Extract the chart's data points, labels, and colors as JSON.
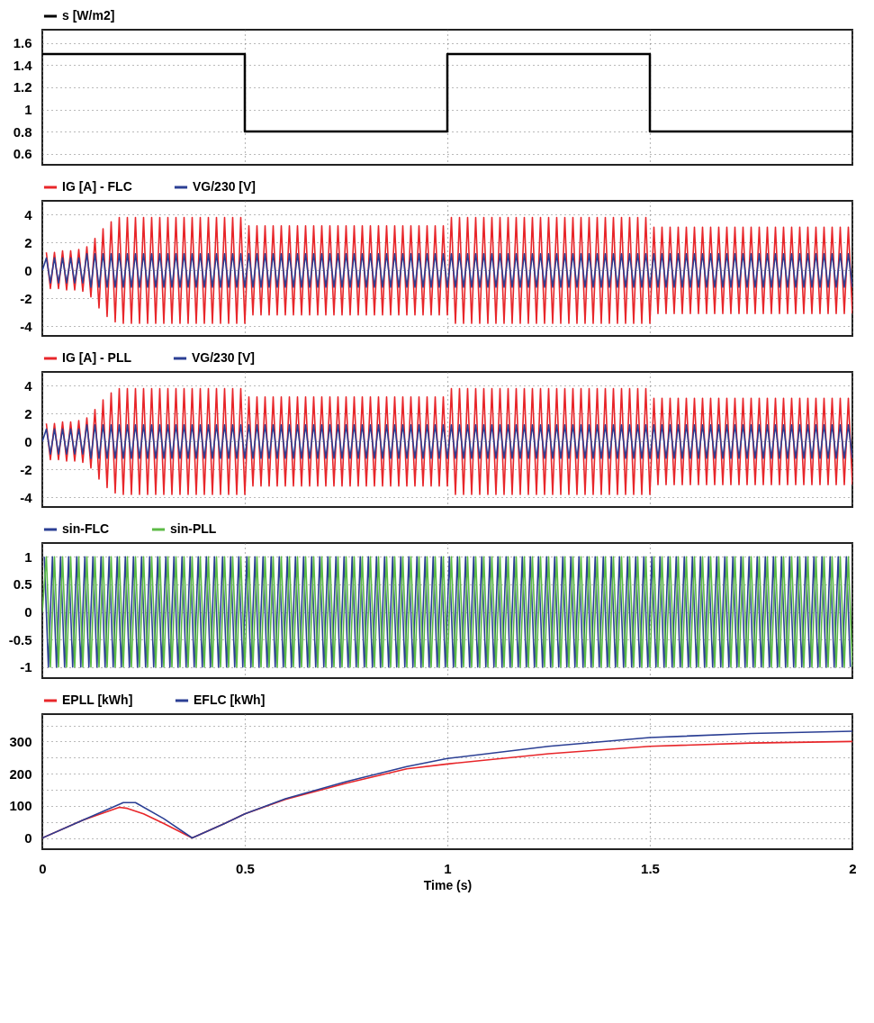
{
  "chart_data": [
    {
      "type": "step",
      "x": [
        0,
        0.5,
        1,
        1.5,
        2
      ],
      "xlim": [
        0,
        2
      ],
      "xticks": [
        0,
        0.5,
        1,
        1.5,
        2
      ],
      "ylim": [
        0.5,
        1.72
      ],
      "yticks": [
        0.6,
        0.8,
        1,
        1.2,
        1.4,
        1.6
      ],
      "grid": true,
      "legend": "top left",
      "tick_labels": "y",
      "series": [
        {
          "name": "s [W/m2]",
          "color": "#000000",
          "values": [
            1.5,
            0.8,
            1.5,
            0.8,
            0.8
          ]
        }
      ]
    },
    {
      "type": "line",
      "xlim": [
        0,
        2
      ],
      "xticks": [
        0,
        0.5,
        1,
        1.5,
        2
      ],
      "ylim": [
        -4.7,
        5
      ],
      "yticks": [
        -4,
        -2,
        0,
        2,
        4
      ],
      "grid": true,
      "legend": "top left",
      "tick_labels": "y",
      "x": [
        0,
        0.01,
        0.02,
        0.03,
        0.04,
        0.05,
        0.06,
        0.07,
        0.08,
        0.09,
        0.1,
        0.11,
        0.12,
        0.13,
        0.14,
        0.15,
        0.16,
        0.17,
        0.18,
        0.19,
        0.2,
        0.21,
        0.22,
        0.23,
        0.24,
        0.25,
        0.26,
        0.27,
        0.28,
        0.29,
        0.3,
        0.31,
        0.32,
        0.33,
        0.34,
        0.35,
        0.36,
        0.37,
        0.38,
        0.39,
        0.4,
        0.41,
        0.42,
        0.43,
        0.44,
        0.45,
        0.46,
        0.47,
        0.48,
        0.49,
        0.5,
        0.51,
        0.52,
        0.53,
        0.54,
        0.55,
        0.56,
        0.57,
        0.58,
        0.59,
        0.6,
        0.61,
        0.62,
        0.63,
        0.64,
        0.65,
        0.66,
        0.67,
        0.68,
        0.69,
        0.7,
        0.71,
        0.72,
        0.73,
        0.74,
        0.75,
        0.76,
        0.77,
        0.78,
        0.79,
        0.8,
        0.81,
        0.82,
        0.83,
        0.84,
        0.85,
        0.86,
        0.87,
        0.88,
        0.89,
        0.9,
        0.91,
        0.92,
        0.93,
        0.94,
        0.95,
        0.96,
        0.97,
        0.98,
        0.99,
        1,
        1.01,
        1.02,
        1.03,
        1.04,
        1.05,
        1.06,
        1.07,
        1.08,
        1.09,
        1.1,
        1.11,
        1.12,
        1.13,
        1.14,
        1.15,
        1.16,
        1.17,
        1.18,
        1.19,
        1.2,
        1.21,
        1.22,
        1.23,
        1.24,
        1.25,
        1.26,
        1.27,
        1.28,
        1.29,
        1.3,
        1.31,
        1.32,
        1.33,
        1.34,
        1.35,
        1.36,
        1.37,
        1.38,
        1.39,
        1.4,
        1.41,
        1.42,
        1.43,
        1.44,
        1.45,
        1.46,
        1.47,
        1.48,
        1.49,
        1.5,
        1.51,
        1.52,
        1.53,
        1.54,
        1.55,
        1.56,
        1.57,
        1.58,
        1.59,
        1.6,
        1.61,
        1.62,
        1.63,
        1.64,
        1.65,
        1.66,
        1.67,
        1.68,
        1.69,
        1.7,
        1.71,
        1.72,
        1.73,
        1.74,
        1.75,
        1.76,
        1.77,
        1.78,
        1.79,
        1.8,
        1.81,
        1.82,
        1.83,
        1.84,
        1.85,
        1.86,
        1.87,
        1.88,
        1.89,
        1.9,
        1.91,
        1.92,
        1.93,
        1.94,
        1.95,
        1.96,
        1.97,
        1.98,
        1.99,
        2
      ],
      "series": [
        {
          "name": "IG [A] - FLC",
          "color": "#e8262a",
          "values": [
            null,
            1.3,
            -1.3,
            1.3,
            -1.3,
            1.4,
            -1.4,
            1.4,
            -1.4,
            1.5,
            -1.5,
            1.7,
            -1.9,
            2.3,
            -2.7,
            3,
            -3.3,
            3.5,
            -3.7,
            3.8,
            -3.8,
            3.8,
            -3.8,
            3.8,
            -3.8,
            3.8,
            -3.8,
            3.8,
            -3.8,
            3.8,
            -3.8,
            3.8,
            -3.8,
            3.8,
            -3.8,
            3.8,
            -3.8,
            3.8,
            -3.8,
            3.8,
            -3.8,
            3.8,
            -3.8,
            3.8,
            -3.8,
            3.8,
            -3.8,
            3.8,
            -3.8,
            3.8,
            -3.8,
            3.2,
            -3.2,
            3.2,
            -3.2,
            3.2,
            -3.2,
            3.2,
            -3.2,
            3.2,
            -3.2,
            3.2,
            -3.2,
            3.2,
            -3.2,
            3.2,
            -3.2,
            3.2,
            -3.2,
            3.2,
            -3.2,
            3.2,
            -3.2,
            3.2,
            -3.2,
            3.2,
            -3.2,
            3.2,
            -3.2,
            3.2,
            -3.2,
            3.2,
            -3.2,
            3.2,
            -3.2,
            3.2,
            -3.2,
            3.2,
            -3.2,
            3.2,
            -3.2,
            3.2,
            -3.2,
            3.2,
            -3.2,
            3.2,
            -3.2,
            3.2,
            -3.2,
            3.2,
            -3.2,
            3.8,
            -3.8,
            3.8,
            -3.8,
            3.8,
            -3.8,
            3.8,
            -3.8,
            3.8,
            -3.8,
            3.8,
            -3.8,
            3.8,
            -3.8,
            3.8,
            -3.8,
            3.8,
            -3.8,
            3.8,
            -3.8,
            3.8,
            -3.8,
            3.8,
            -3.8,
            3.8,
            -3.8,
            3.8,
            -3.8,
            3.8,
            -3.8,
            3.8,
            -3.8,
            3.8,
            -3.8,
            3.8,
            -3.8,
            3.8,
            -3.8,
            3.8,
            -3.8,
            3.8,
            -3.8,
            3.8,
            -3.8,
            3.8,
            -3.8,
            3.8,
            -3.8,
            3.8,
            -3.8,
            3.1,
            -3.1,
            3.1,
            -3.1,
            3.1,
            -3.1,
            3.1,
            -3.1,
            3.1,
            -3.1,
            3.1,
            -3.1,
            3.1,
            -3.1,
            3.1,
            -3.1,
            3.1,
            -3.1,
            3.1,
            -3.1,
            3.1,
            -3.1,
            3.1,
            -3.1,
            3.1,
            -3.1,
            3.1,
            -3.1,
            3.1,
            -3.1,
            3.1,
            -3.1,
            3.1,
            -3.1,
            3.1,
            -3.1,
            3.1,
            -3.1,
            3.1,
            -3.1,
            3.1,
            -3.1,
            3.1,
            -3.1,
            3.1,
            -3.1,
            3.1,
            -3.1,
            3.1,
            -3.1
          ]
        },
        {
          "name": "VG/230 [V]",
          "color": "#2b3f94",
          "values": [
            0,
            0.9,
            -0.9,
            0.9,
            -0.9,
            0.9,
            -0.9,
            0.9,
            -0.9,
            0.9,
            -0.9,
            1.2,
            -1.2,
            1.2,
            -1.2,
            1.2,
            -1.2,
            1.2,
            -1.2,
            1.2,
            -1.2,
            1.2,
            -1.2,
            1.2,
            -1.2,
            1.2,
            -1.2,
            1.2,
            -1.2,
            1.2,
            -1.2,
            1.2,
            -1.2,
            1.2,
            -1.2,
            1.2,
            -1.2,
            1.2,
            -1.2,
            1.2,
            -1.2,
            1.2,
            -1.2,
            1.2,
            -1.2,
            1.2,
            -1.2,
            1.2,
            -1.2,
            1.2,
            -1.2,
            1.2,
            -1.2,
            1.2,
            -1.2,
            1.2,
            -1.2,
            1.2,
            -1.2,
            1.2,
            -1.2,
            1.2,
            -1.2,
            1.2,
            -1.2,
            1.2,
            -1.2,
            1.2,
            -1.2,
            1.2,
            -1.2,
            1.2,
            -1.2,
            1.2,
            -1.2,
            1.2,
            -1.2,
            1.2,
            -1.2,
            1.2,
            -1.2,
            1.2,
            -1.2,
            1.2,
            -1.2,
            1.2,
            -1.2,
            1.2,
            -1.2,
            1.2,
            -1.2,
            1.2,
            -1.2,
            1.2,
            -1.2,
            1.2,
            -1.2,
            1.2,
            -1.2,
            1.2,
            -1.2,
            1.2,
            -1.2,
            1.2,
            -1.2,
            1.2,
            -1.2,
            1.2,
            -1.2,
            1.2,
            -1.2,
            1.2,
            -1.2,
            1.2,
            -1.2,
            1.2,
            -1.2,
            1.2,
            -1.2,
            1.2,
            -1.2,
            1.2,
            -1.2,
            1.2,
            -1.2,
            1.2,
            -1.2,
            1.2,
            -1.2,
            1.2,
            -1.2,
            1.2,
            -1.2,
            1.2,
            -1.2,
            1.2,
            -1.2,
            1.2,
            -1.2,
            1.2,
            -1.2,
            1.2,
            -1.2,
            1.2,
            -1.2,
            1.2,
            -1.2,
            1.2,
            -1.2,
            1.2,
            -1.2,
            1.2,
            -1.2,
            1.2,
            -1.2,
            1.2,
            -1.2,
            1.2,
            -1.2,
            1.2,
            -1.2,
            1.2,
            -1.2,
            1.2,
            -1.2,
            1.2,
            -1.2,
            1.2,
            -1.2,
            1.2,
            -1.2,
            1.2,
            -1.2,
            1.2,
            -1.2,
            1.2,
            -1.2,
            1.2,
            -1.2,
            1.2,
            -1.2,
            1.2,
            -1.2,
            1.2,
            -1.2,
            1.2,
            -1.2,
            1.2,
            -1.2,
            1.2,
            -1.2,
            1.2,
            -1.2,
            1.2,
            -1.2,
            1.2,
            -1.2,
            1.2,
            -1.2,
            1.2,
            -1.2
          ]
        }
      ]
    },
    {
      "type": "line",
      "xlim": [
        0,
        2
      ],
      "xticks": [
        0,
        0.5,
        1,
        1.5,
        2
      ],
      "ylim": [
        -4.7,
        5
      ],
      "yticks": [
        -4,
        -2,
        0,
        2,
        4
      ],
      "grid": true,
      "legend": "top left",
      "tick_labels": "y",
      "x": [
        0,
        0.01,
        0.02,
        0.03,
        0.04,
        0.05,
        0.06,
        0.07,
        0.08,
        0.09,
        0.1,
        0.11,
        0.12,
        0.13,
        0.14,
        0.15,
        0.16,
        0.17,
        0.18,
        0.19,
        0.2,
        0.21,
        0.22,
        0.23,
        0.24,
        0.25,
        0.26,
        0.27,
        0.28,
        0.29,
        0.3,
        0.31,
        0.32,
        0.33,
        0.34,
        0.35,
        0.36,
        0.37,
        0.38,
        0.39,
        0.4,
        0.41,
        0.42,
        0.43,
        0.44,
        0.45,
        0.46,
        0.47,
        0.48,
        0.49,
        0.5,
        0.51,
        0.52,
        0.53,
        0.54,
        0.55,
        0.56,
        0.57,
        0.58,
        0.59,
        0.6,
        0.61,
        0.62,
        0.63,
        0.64,
        0.65,
        0.66,
        0.67,
        0.68,
        0.69,
        0.7,
        0.71,
        0.72,
        0.73,
        0.74,
        0.75,
        0.76,
        0.77,
        0.78,
        0.79,
        0.8,
        0.81,
        0.82,
        0.83,
        0.84,
        0.85,
        0.86,
        0.87,
        0.88,
        0.89,
        0.9,
        0.91,
        0.92,
        0.93,
        0.94,
        0.95,
        0.96,
        0.97,
        0.98,
        0.99,
        1,
        1.01,
        1.02,
        1.03,
        1.04,
        1.05,
        1.06,
        1.07,
        1.08,
        1.09,
        1.1,
        1.11,
        1.12,
        1.13,
        1.14,
        1.15,
        1.16,
        1.17,
        1.18,
        1.19,
        1.2,
        1.21,
        1.22,
        1.23,
        1.24,
        1.25,
        1.26,
        1.27,
        1.28,
        1.29,
        1.3,
        1.31,
        1.32,
        1.33,
        1.34,
        1.35,
        1.36,
        1.37,
        1.38,
        1.39,
        1.4,
        1.41,
        1.42,
        1.43,
        1.44,
        1.45,
        1.46,
        1.47,
        1.48,
        1.49,
        1.5,
        1.51,
        1.52,
        1.53,
        1.54,
        1.55,
        1.56,
        1.57,
        1.58,
        1.59,
        1.6,
        1.61,
        1.62,
        1.63,
        1.64,
        1.65,
        1.66,
        1.67,
        1.68,
        1.69,
        1.7,
        1.71,
        1.72,
        1.73,
        1.74,
        1.75,
        1.76,
        1.77,
        1.78,
        1.79,
        1.8,
        1.81,
        1.82,
        1.83,
        1.84,
        1.85,
        1.86,
        1.87,
        1.88,
        1.89,
        1.9,
        1.91,
        1.92,
        1.93,
        1.94,
        1.95,
        1.96,
        1.97,
        1.98,
        1.99,
        2
      ],
      "series": [
        {
          "name": "IG [A] - PLL",
          "color": "#e8262a",
          "values": [
            null,
            1.3,
            -1.3,
            1.3,
            -1.3,
            1.4,
            -1.4,
            1.4,
            -1.4,
            1.5,
            -1.5,
            1.7,
            -1.9,
            2.3,
            -2.7,
            3,
            -3.3,
            3.5,
            -3.7,
            3.8,
            -3.8,
            3.8,
            -3.8,
            3.8,
            -3.8,
            3.8,
            -3.8,
            3.8,
            -3.8,
            3.8,
            -3.8,
            3.8,
            -3.8,
            3.8,
            -3.8,
            3.8,
            -3.8,
            3.8,
            -3.8,
            3.8,
            -3.8,
            3.8,
            -3.8,
            3.8,
            -3.8,
            3.8,
            -3.8,
            3.8,
            -3.8,
            3.8,
            -3.8,
            3.2,
            -3.2,
            3.2,
            -3.2,
            3.2,
            -3.2,
            3.2,
            -3.2,
            3.2,
            -3.2,
            3.2,
            -3.2,
            3.2,
            -3.2,
            3.2,
            -3.2,
            3.2,
            -3.2,
            3.2,
            -3.2,
            3.2,
            -3.2,
            3.2,
            -3.2,
            3.2,
            -3.2,
            3.2,
            -3.2,
            3.2,
            -3.2,
            3.2,
            -3.2,
            3.2,
            -3.2,
            3.2,
            -3.2,
            3.2,
            -3.2,
            3.2,
            -3.2,
            3.2,
            -3.2,
            3.2,
            -3.2,
            3.2,
            -3.2,
            3.2,
            -3.2,
            3.2,
            -3.2,
            3.8,
            -3.8,
            3.8,
            -3.8,
            3.8,
            -3.8,
            3.8,
            -3.8,
            3.8,
            -3.8,
            3.8,
            -3.8,
            3.8,
            -3.8,
            3.8,
            -3.8,
            3.8,
            -3.8,
            3.8,
            -3.8,
            3.8,
            -3.8,
            3.8,
            -3.8,
            3.8,
            -3.8,
            3.8,
            -3.8,
            3.8,
            -3.8,
            3.8,
            -3.8,
            3.8,
            -3.8,
            3.8,
            -3.8,
            3.8,
            -3.8,
            3.8,
            -3.8,
            3.8,
            -3.8,
            3.8,
            -3.8,
            3.8,
            -3.8,
            3.8,
            -3.8,
            3.8,
            -3.8,
            3.1,
            -3.1,
            3.1,
            -3.1,
            3.1,
            -3.1,
            3.1,
            -3.1,
            3.1,
            -3.1,
            3.1,
            -3.1,
            3.1,
            -3.1,
            3.1,
            -3.1,
            3.1,
            -3.1,
            3.1,
            -3.1,
            3.1,
            -3.1,
            3.1,
            -3.1,
            3.1,
            -3.1,
            3.1,
            -3.1,
            3.1,
            -3.1,
            3.1,
            -3.1,
            3.1,
            -3.1,
            3.1,
            -3.1,
            3.1,
            -3.1,
            3.1,
            -3.1,
            3.1,
            -3.1,
            3.1,
            -3.1,
            3.1,
            -3.1,
            3.1,
            -3.1,
            3.1,
            -3.1
          ]
        },
        {
          "name": "VG/230 [V]",
          "color": "#2b3f94",
          "values": [
            0,
            0.9,
            -0.9,
            0.9,
            -0.9,
            0.9,
            -0.9,
            0.9,
            -0.9,
            0.9,
            -0.9,
            1.2,
            -1.2,
            1.2,
            -1.2,
            1.2,
            -1.2,
            1.2,
            -1.2,
            1.2,
            -1.2,
            1.2,
            -1.2,
            1.2,
            -1.2,
            1.2,
            -1.2,
            1.2,
            -1.2,
            1.2,
            -1.2,
            1.2,
            -1.2,
            1.2,
            -1.2,
            1.2,
            -1.2,
            1.2,
            -1.2,
            1.2,
            -1.2,
            1.2,
            -1.2,
            1.2,
            -1.2,
            1.2,
            -1.2,
            1.2,
            -1.2,
            1.2,
            -1.2,
            1.2,
            -1.2,
            1.2,
            -1.2,
            1.2,
            -1.2,
            1.2,
            -1.2,
            1.2,
            -1.2,
            1.2,
            -1.2,
            1.2,
            -1.2,
            1.2,
            -1.2,
            1.2,
            -1.2,
            1.2,
            -1.2,
            1.2,
            -1.2,
            1.2,
            -1.2,
            1.2,
            -1.2,
            1.2,
            -1.2,
            1.2,
            -1.2,
            1.2,
            -1.2,
            1.2,
            -1.2,
            1.2,
            -1.2,
            1.2,
            -1.2,
            1.2,
            -1.2,
            1.2,
            -1.2,
            1.2,
            -1.2,
            1.2,
            -1.2,
            1.2,
            -1.2,
            1.2,
            -1.2,
            1.2,
            -1.2,
            1.2,
            -1.2,
            1.2,
            -1.2,
            1.2,
            -1.2,
            1.2,
            -1.2,
            1.2,
            -1.2,
            1.2,
            -1.2,
            1.2,
            -1.2,
            1.2,
            -1.2,
            1.2,
            -1.2,
            1.2,
            -1.2,
            1.2,
            -1.2,
            1.2,
            -1.2,
            1.2,
            -1.2,
            1.2,
            -1.2,
            1.2,
            -1.2,
            1.2,
            -1.2,
            1.2,
            -1.2,
            1.2,
            -1.2,
            1.2,
            -1.2,
            1.2,
            -1.2,
            1.2,
            -1.2,
            1.2,
            -1.2,
            1.2,
            -1.2,
            1.2,
            -1.2,
            1.2,
            -1.2,
            1.2,
            -1.2,
            1.2,
            -1.2,
            1.2,
            -1.2,
            1.2,
            -1.2,
            1.2,
            -1.2,
            1.2,
            -1.2,
            1.2,
            -1.2,
            1.2,
            -1.2,
            1.2,
            -1.2,
            1.2,
            -1.2,
            1.2,
            -1.2,
            1.2,
            -1.2,
            1.2,
            -1.2,
            1.2,
            -1.2,
            1.2,
            -1.2,
            1.2,
            -1.2,
            1.2,
            -1.2,
            1.2,
            -1.2,
            1.2,
            -1.2,
            1.2,
            -1.2,
            1.2,
            -1.2,
            1.2,
            -1.2,
            1.2,
            -1.2,
            1.2,
            -1.2
          ]
        }
      ]
    },
    {
      "type": "line",
      "xlim": [
        0,
        2
      ],
      "xticks": [
        0,
        0.5,
        1,
        1.5,
        2
      ],
      "ylim": [
        -1.2,
        1.25
      ],
      "yticks": [
        -1,
        -0.5,
        0,
        0.5,
        1
      ],
      "grid": true,
      "legend": "top left",
      "tick_labels": "y",
      "x": [
        0,
        0.01,
        0.02,
        0.03,
        0.04,
        0.05,
        0.06,
        0.07,
        0.08,
        0.09,
        0.1,
        0.11,
        0.12,
        0.13,
        0.14,
        0.15,
        0.16,
        0.17,
        0.18,
        0.19,
        0.2,
        0.21,
        0.22,
        0.23,
        0.24,
        0.25,
        0.26,
        0.27,
        0.28,
        0.29,
        0.3,
        0.31,
        0.32,
        0.33,
        0.34,
        0.35,
        0.36,
        0.37,
        0.38,
        0.39,
        0.4,
        0.41,
        0.42,
        0.43,
        0.44,
        0.45,
        0.46,
        0.47,
        0.48,
        0.49,
        0.5,
        0.51,
        0.52,
        0.53,
        0.54,
        0.55,
        0.56,
        0.57,
        0.58,
        0.59,
        0.6,
        0.61,
        0.62,
        0.63,
        0.64,
        0.65,
        0.66,
        0.67,
        0.68,
        0.69,
        0.7,
        0.71,
        0.72,
        0.73,
        0.74,
        0.75,
        0.76,
        0.77,
        0.78,
        0.79,
        0.8,
        0.81,
        0.82,
        0.83,
        0.84,
        0.85,
        0.86,
        0.87,
        0.88,
        0.89,
        0.9,
        0.91,
        0.92,
        0.93,
        0.94,
        0.95,
        0.96,
        0.97,
        0.98,
        0.99,
        1,
        1.01,
        1.02,
        1.03,
        1.04,
        1.05,
        1.06,
        1.07,
        1.08,
        1.09,
        1.1,
        1.11,
        1.12,
        1.13,
        1.14,
        1.15,
        1.16,
        1.17,
        1.18,
        1.19,
        1.2,
        1.21,
        1.22,
        1.23,
        1.24,
        1.25,
        1.26,
        1.27,
        1.28,
        1.29,
        1.3,
        1.31,
        1.32,
        1.33,
        1.34,
        1.35,
        1.36,
        1.37,
        1.38,
        1.39,
        1.4,
        1.41,
        1.42,
        1.43,
        1.44,
        1.45,
        1.46,
        1.47,
        1.48,
        1.49,
        1.5,
        1.51,
        1.52,
        1.53,
        1.54,
        1.55,
        1.56,
        1.57,
        1.58,
        1.59,
        1.6,
        1.61,
        1.62,
        1.63,
        1.64,
        1.65,
        1.66,
        1.67,
        1.68,
        1.69,
        1.7,
        1.71,
        1.72,
        1.73,
        1.74,
        1.75,
        1.76,
        1.77,
        1.78,
        1.79,
        1.8,
        1.81,
        1.82,
        1.83,
        1.84,
        1.85,
        1.86,
        1.87,
        1.88,
        1.89,
        1.9,
        1.91,
        1.92,
        1.93,
        1.94,
        1.95,
        1.96,
        1.97,
        1.98,
        1.99,
        2
      ],
      "series": [
        {
          "name": "sin-FLC",
          "color": "#2b3f94",
          "x": [
            0.005,
            0.015,
            0.025,
            0.035,
            0.045,
            0.055,
            0.065,
            0.075,
            0.085,
            0.095,
            0.105,
            0.115,
            0.125,
            0.135,
            0.145,
            0.155,
            0.165,
            0.175,
            0.185,
            0.195,
            0.205,
            0.215,
            0.225,
            0.235,
            0.245,
            0.255,
            0.265,
            0.275,
            0.285,
            0.295,
            0.305,
            0.315,
            0.325,
            0.335,
            0.345,
            0.355,
            0.365,
            0.375,
            0.385,
            0.395,
            0.405,
            0.415,
            0.425,
            0.435,
            0.445,
            0.455,
            0.465,
            0.475,
            0.485,
            0.495,
            0.505,
            0.515,
            0.525,
            0.535,
            0.545,
            0.555,
            0.565,
            0.575,
            0.585,
            0.595,
            0.605,
            0.615,
            0.625,
            0.635,
            0.645,
            0.655,
            0.665,
            0.675,
            0.685,
            0.695,
            0.705,
            0.715,
            0.725,
            0.735,
            0.745,
            0.755,
            0.765,
            0.775,
            0.785,
            0.795,
            0.805,
            0.815,
            0.825,
            0.835,
            0.845,
            0.855,
            0.865,
            0.875,
            0.885,
            0.895,
            0.905,
            0.915,
            0.925,
            0.935,
            0.945,
            0.955,
            0.965,
            0.975,
            0.985,
            0.995,
            1.005,
            1.015,
            1.025,
            1.035,
            1.045,
            1.055,
            1.065,
            1.075,
            1.085,
            1.095,
            1.105,
            1.115,
            1.125,
            1.135,
            1.145,
            1.155,
            1.165,
            1.175,
            1.185,
            1.195,
            1.205,
            1.215,
            1.225,
            1.235,
            1.245,
            1.255,
            1.265,
            1.275,
            1.285,
            1.295,
            1.305,
            1.315,
            1.325,
            1.335,
            1.345,
            1.355,
            1.365,
            1.375,
            1.385,
            1.395,
            1.405,
            1.415,
            1.425,
            1.435,
            1.445,
            1.455,
            1.465,
            1.475,
            1.485,
            1.495,
            1.505,
            1.515,
            1.525,
            1.535,
            1.545,
            1.555,
            1.565,
            1.575,
            1.585,
            1.595,
            1.605,
            1.615,
            1.625,
            1.635,
            1.645,
            1.655,
            1.665,
            1.675,
            1.685,
            1.695,
            1.705,
            1.715,
            1.725,
            1.735,
            1.745,
            1.755,
            1.765,
            1.775,
            1.785,
            1.795,
            1.805,
            1.815,
            1.825,
            1.835,
            1.845,
            1.855,
            1.865,
            1.875,
            1.885,
            1.895,
            1.905,
            1.915,
            1.925,
            1.935,
            1.945,
            1.955,
            1.965,
            1.975,
            1.985,
            1.995
          ],
          "values": [
            1,
            -1,
            1,
            -1,
            1,
            -1,
            1,
            -1,
            1,
            -1,
            1,
            -1,
            1,
            -1,
            1,
            -1,
            1,
            -1,
            1,
            -1,
            1,
            -1,
            1,
            -1,
            1,
            -1,
            1,
            -1,
            1,
            -1,
            1,
            -1,
            1,
            -1,
            1,
            -1,
            1,
            -1,
            1,
            -1,
            1,
            -1,
            1,
            -1,
            1,
            -1,
            1,
            -1,
            1,
            -1,
            1,
            -1,
            1,
            -1,
            1,
            -1,
            1,
            -1,
            1,
            -1,
            1,
            -1,
            1,
            -1,
            1,
            -1,
            1,
            -1,
            1,
            -1,
            1,
            -1,
            1,
            -1,
            1,
            -1,
            1,
            -1,
            1,
            -1,
            1,
            -1,
            1,
            -1,
            1,
            -1,
            1,
            -1,
            1,
            -1,
            1,
            -1,
            1,
            -1,
            1,
            -1,
            1,
            -1,
            1,
            -1,
            1,
            -1,
            1,
            -1,
            1,
            -1,
            1,
            -1,
            1,
            -1,
            1,
            -1,
            1,
            -1,
            1,
            -1,
            1,
            -1,
            1,
            -1,
            1,
            -1,
            1,
            -1,
            1,
            -1,
            1,
            -1,
            1,
            -1,
            1,
            -1,
            1,
            -1,
            1,
            -1,
            1,
            -1,
            1,
            -1,
            1,
            -1,
            1,
            -1,
            1,
            -1,
            1,
            -1,
            1,
            -1,
            1,
            -1,
            1,
            -1,
            1,
            -1,
            1,
            -1,
            1,
            -1,
            1,
            -1,
            1,
            -1,
            1,
            -1,
            1,
            -1,
            1,
            -1,
            1,
            -1,
            1,
            -1,
            1,
            -1,
            1,
            -1,
            1,
            -1,
            1,
            -1,
            1,
            -1,
            1,
            -1,
            1,
            -1,
            1,
            -1,
            1,
            -1,
            1,
            -1,
            1,
            -1,
            1,
            -1,
            1,
            -1
          ]
        },
        {
          "name": "sin-PLL",
          "color": "#5dbb46",
          "values": [
            0,
            1,
            -1,
            1,
            -1,
            1,
            -1,
            1,
            -1,
            1,
            -1,
            1,
            -1,
            1,
            -1,
            1,
            -1,
            1,
            -1,
            1,
            -1,
            1,
            -1,
            1,
            -1,
            1,
            -1,
            1,
            -1,
            1,
            -1,
            1,
            -1,
            1,
            -1,
            1,
            -1,
            1,
            -1,
            1,
            -1,
            1,
            -1,
            1,
            -1,
            1,
            -1,
            1,
            -1,
            1,
            -1,
            1,
            -1,
            1,
            -1,
            1,
            -1,
            1,
            -1,
            1,
            -1,
            1,
            -1,
            1,
            -1,
            1,
            -1,
            1,
            -1,
            1,
            -1,
            1,
            -1,
            1,
            -1,
            1,
            -1,
            1,
            -1,
            1,
            -1,
            1,
            -1,
            1,
            -1,
            1,
            -1,
            1,
            -1,
            1,
            -1,
            1,
            -1,
            1,
            -1,
            1,
            -1,
            1,
            -1,
            1,
            -1,
            1,
            -1,
            1,
            -1,
            1,
            -1,
            1,
            -1,
            1,
            -1,
            1,
            -1,
            1,
            -1,
            1,
            -1,
            1,
            -1,
            1,
            -1,
            1,
            -1,
            1,
            -1,
            1,
            -1,
            1,
            -1,
            1,
            -1,
            1,
            -1,
            1,
            -1,
            1,
            -1,
            1,
            -1,
            1,
            -1,
            1,
            -1,
            1,
            -1,
            1,
            -1,
            1,
            -1,
            1,
            -1,
            1,
            -1,
            1,
            -1,
            1,
            -1,
            1,
            -1,
            1,
            -1,
            1,
            -1,
            1,
            -1,
            1,
            -1,
            1,
            -1,
            1,
            -1,
            1,
            -1,
            1,
            -1,
            1,
            -1,
            1,
            -1,
            1,
            -1,
            1,
            -1,
            1,
            -1,
            1,
            -1,
            1,
            -1,
            1,
            -1,
            1,
            -1,
            1,
            -1,
            1,
            -1,
            1,
            -1,
            1,
            -1
          ]
        }
      ]
    },
    {
      "type": "line",
      "xlim": [
        0,
        2
      ],
      "xticks": [
        0,
        0.5,
        1,
        1.5,
        2
      ],
      "xlabel": "Time (s)",
      "ylim": [
        -35,
        385
      ],
      "yticks": [
        0,
        {
          "value": 50,
          "label": null
        },
        100,
        {
          "value": 150,
          "label": null
        },
        200,
        {
          "value": 250,
          "label": null
        },
        300,
        {
          "value": 350,
          "label": null
        }
      ],
      "grid": true,
      "legend": "top left",
      "series": [
        {
          "name": "EPLL [kWh]",
          "color": "#e8262a",
          "x": [
            0,
            0.1,
            0.19,
            0.21,
            0.25,
            0.3,
            0.37,
            0.45,
            0.5,
            0.6,
            0.75,
            0.9,
            1,
            1.25,
            1.5,
            1.75,
            2
          ],
          "values": [
            0,
            55,
            95,
            92,
            75,
            45,
            0,
            45,
            75,
            120,
            170,
            215,
            230,
            262,
            285,
            295,
            300
          ]
        },
        {
          "name": "EFLC [kWh]",
          "color": "#2b3f94",
          "x": [
            0,
            0.1,
            0.2,
            0.23,
            0.3,
            0.37,
            0.45,
            0.5,
            0.6,
            0.75,
            0.9,
            1,
            1.25,
            1.5,
            1.75,
            2
          ],
          "values": [
            0,
            55,
            110,
            110,
            60,
            0,
            45,
            75,
            122,
            175,
            222,
            247,
            285,
            312,
            325,
            332
          ]
        }
      ]
    }
  ]
}
